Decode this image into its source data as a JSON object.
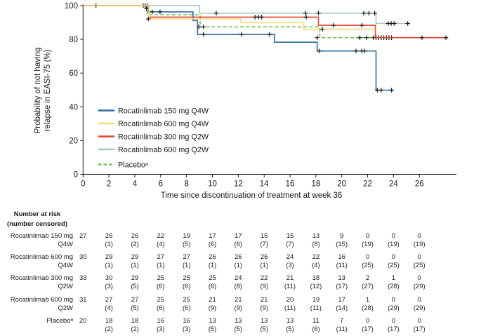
{
  "figure": {
    "y_axis_label_line1": "Probability of not having",
    "y_axis_label_line2": "relapse in EASI-75 (%)",
    "x_axis_label": "Time since discontinuation of treatment at week 36",
    "y_ticks": [
      0,
      20,
      40,
      60,
      80,
      100
    ],
    "x_ticks": [
      0,
      2,
      4,
      6,
      8,
      10,
      12,
      14,
      16,
      18,
      20,
      22,
      24,
      26
    ]
  },
  "legend": {
    "entries": [
      {
        "label": "Rocatinlimab 150 mg Q4W",
        "color": "#2e6ba8",
        "dash": false
      },
      {
        "label": "Rocatinlimab 600 mg Q4W",
        "color": "#f5dc7a",
        "dash": false
      },
      {
        "label": "Rocatinlimab 300 mg Q2W",
        "color": "#e8402c",
        "dash": false
      },
      {
        "label": "Rocatinlimab 600 mg Q2W",
        "color": "#a4cbbd",
        "dash": false
      },
      {
        "label": "Placeboᵃ",
        "color": "#6fc04f",
        "dash": true
      }
    ]
  },
  "chart_data": {
    "type": "line",
    "subtype": "kaplan-meier-step",
    "title": "",
    "xlabel": "Time since discontinuation of treatment at week 36",
    "ylabel": "Probability of not having relapse in EASI-75 (%)",
    "xlim": [
      0,
      28.8
    ],
    "ylim": [
      0,
      100
    ],
    "grid": false,
    "legend_position": "inside-left-middle",
    "series": [
      {
        "name": "Rocatinlimab 600 mg Q2W",
        "color": "#a4cbbd",
        "dash": false,
        "points": [
          [
            0,
            100
          ],
          [
            9.0,
            100
          ],
          [
            9.0,
            95.5
          ],
          [
            22.65,
            95.5
          ],
          [
            22.65,
            89.4
          ],
          [
            25.25,
            89.4
          ]
        ],
        "censors": [
          [
            4.65,
            100
          ],
          [
            4.8,
            100
          ],
          [
            4.95,
            100
          ],
          [
            10.3,
            95.5
          ],
          [
            17.2,
            95.5
          ],
          [
            18.2,
            95.5
          ],
          [
            21.7,
            95.5
          ],
          [
            22.1,
            95.5
          ],
          [
            22.55,
            95.5
          ],
          [
            23.6,
            89.4
          ],
          [
            23.82,
            89.4
          ],
          [
            24.05,
            89.4
          ],
          [
            25.1,
            89.4
          ]
        ]
      },
      {
        "name": "Placeboᵃ",
        "color": "#6fc04f",
        "dash": true,
        "points": [
          [
            0,
            100
          ],
          [
            4.95,
            100
          ],
          [
            4.95,
            94.6
          ],
          [
            9.05,
            94.6
          ],
          [
            9.05,
            87.4
          ],
          [
            18.3,
            87.4
          ],
          [
            18.3,
            81.0
          ],
          [
            23.9,
            81.0
          ]
        ],
        "censors": [
          [
            8.95,
            87.4
          ],
          [
            9.3,
            87.4
          ],
          [
            18.1,
            81.0
          ],
          [
            21.4,
            81.0
          ],
          [
            21.9,
            81.0
          ],
          [
            22.45,
            81.0
          ],
          [
            22.65,
            81.0
          ],
          [
            22.85,
            81.0
          ],
          [
            23.05,
            81.0
          ],
          [
            23.25,
            81.0
          ],
          [
            23.45,
            81.0
          ],
          [
            23.65,
            81.0
          ],
          [
            23.85,
            81.0
          ]
        ]
      },
      {
        "name": "Rocatinlimab 150 mg Q4W",
        "color": "#2e6ba8",
        "dash": false,
        "points": [
          [
            0,
            100
          ],
          [
            5.05,
            100
          ],
          [
            5.05,
            96.3
          ],
          [
            8.5,
            96.3
          ],
          [
            8.5,
            91.2
          ],
          [
            8.85,
            91.2
          ],
          [
            8.85,
            82.9
          ],
          [
            14.8,
            82.9
          ],
          [
            14.8,
            78.3
          ],
          [
            18.1,
            78.3
          ],
          [
            18.1,
            73.1
          ],
          [
            22.65,
            73.1
          ],
          [
            22.65,
            49.9
          ],
          [
            23.9,
            49.9
          ]
        ],
        "censors": [
          [
            1.0,
            100
          ],
          [
            4.9,
            98.2
          ],
          [
            5.35,
            96.3
          ],
          [
            5.95,
            96.3
          ],
          [
            9.3,
            82.9
          ],
          [
            12.25,
            82.9
          ],
          [
            14.4,
            82.9
          ],
          [
            18.25,
            73.1
          ],
          [
            21.1,
            73.1
          ],
          [
            21.55,
            73.1
          ],
          [
            21.75,
            73.1
          ],
          [
            22.75,
            49.9
          ],
          [
            23.05,
            49.9
          ],
          [
            23.85,
            49.9
          ]
        ]
      },
      {
        "name": "Rocatinlimab 300 mg Q2W",
        "color": "#e8402c",
        "dash": false,
        "points": [
          [
            0,
            100
          ],
          [
            5.1,
            100
          ],
          [
            5.1,
            93.2
          ],
          [
            18.2,
            93.2
          ],
          [
            18.2,
            88.3
          ],
          [
            22.6,
            88.3
          ],
          [
            22.6,
            81.0
          ],
          [
            28.2,
            81.0
          ]
        ],
        "censors": [
          [
            13.3,
            93.2
          ],
          [
            13.55,
            93.2
          ],
          [
            13.8,
            93.2
          ],
          [
            17.25,
            93.2
          ],
          [
            19.35,
            88.3
          ],
          [
            21.55,
            88.3
          ],
          [
            26.2,
            81.0
          ],
          [
            28.05,
            81.0
          ]
        ]
      },
      {
        "name": "Rocatinlimab 600 mg Q4W",
        "color": "#f5dc7a",
        "dash": false,
        "points": [
          [
            0,
            100
          ],
          [
            5.1,
            100
          ],
          [
            5.1,
            92.1
          ],
          [
            12.2,
            92.1
          ],
          [
            12.2,
            89.9
          ],
          [
            17.05,
            89.9
          ],
          [
            17.05,
            86.0
          ],
          [
            22.6,
            86.0
          ]
        ],
        "censors": [
          [
            5.05,
            92.1
          ],
          [
            18.5,
            86.0
          ]
        ]
      }
    ]
  },
  "risk_table": {
    "header_line1": "Number at risk",
    "header_line2": "(number censored)",
    "weeks": [
      0,
      2,
      4,
      6,
      8,
      10,
      12,
      14,
      16,
      18,
      20,
      22,
      24,
      26
    ],
    "rows": [
      {
        "label_line1": "Rocatinlimab 150 mg",
        "label_line2": "Q4W",
        "n": [
          "27",
          "26",
          "26",
          "22",
          "19",
          "17",
          "17",
          "15",
          "15",
          "13",
          "9",
          "0",
          "0",
          "0"
        ],
        "censored": [
          "",
          "1",
          "2",
          "4",
          "5",
          "6",
          "6",
          "7",
          "7",
          "8",
          "15",
          "19",
          "19",
          "19"
        ]
      },
      {
        "label_line1": "Rocatinlimab 600 mg",
        "label_line2": "Q4W",
        "n": [
          "30",
          "29",
          "29",
          "27",
          "27",
          "26",
          "26",
          "26",
          "24",
          "22",
          "16",
          "0",
          "0",
          "0"
        ],
        "censored": [
          "",
          "1",
          "1",
          "1",
          "1",
          "1",
          "1",
          "1",
          "3",
          "4",
          "11",
          "25",
          "25",
          "25"
        ]
      },
      {
        "label_line1": "Rocatinlimab 300 mg",
        "label_line2": "Q2W",
        "n": [
          "33",
          "30",
          "29",
          "25",
          "25",
          "25",
          "24",
          "22",
          "21",
          "18",
          "13",
          "2",
          "1",
          "0"
        ],
        "censored": [
          "",
          "3",
          "5",
          "6",
          "6",
          "6",
          "8",
          "9",
          "11",
          "12",
          "17",
          "27",
          "28",
          "29"
        ]
      },
      {
        "label_line1": "Rocatinlimab 600 mg",
        "label_line2": "Q2W",
        "n": [
          "31",
          "27",
          "27",
          "25",
          "25",
          "21",
          "21",
          "21",
          "20",
          "19",
          "17",
          "1",
          "0",
          "0"
        ],
        "censored": [
          "",
          "4",
          "5",
          "6",
          "6",
          "9",
          "9",
          "9",
          "11",
          "11",
          "14",
          "28",
          "29",
          "29"
        ]
      },
      {
        "label_line1": "Placeboᵃ",
        "label_line2": "",
        "n": [
          "20",
          "18",
          "18",
          "16",
          "16",
          "13",
          "13",
          "13",
          "13",
          "11",
          "7",
          "0",
          "0",
          "0"
        ],
        "censored": [
          "",
          "2",
          "2",
          "3",
          "3",
          "5",
          "5",
          "5",
          "5",
          "6",
          "11",
          "17",
          "17",
          "17"
        ]
      }
    ]
  }
}
